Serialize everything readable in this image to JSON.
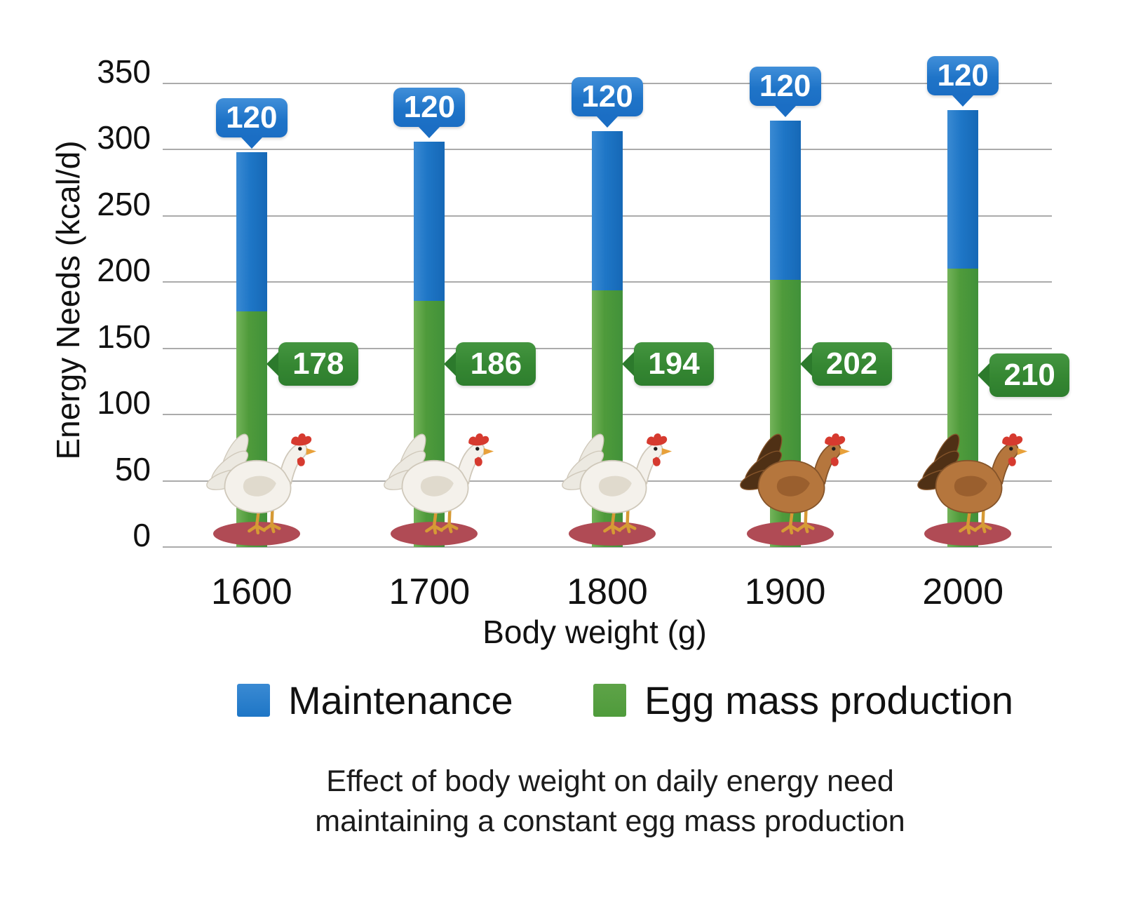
{
  "chart_data": {
    "type": "bar",
    "stacked": true,
    "categories": [
      "1600",
      "1700",
      "1800",
      "1900",
      "2000"
    ],
    "series": [
      {
        "name": "Maintenance",
        "color": "#1e76c6",
        "values": [
          120,
          120,
          120,
          120,
          120
        ]
      },
      {
        "name": "Egg mass production",
        "color": "#4f9b3b",
        "values": [
          178,
          186,
          194,
          202,
          210
        ]
      }
    ],
    "totals": [
      298,
      306,
      314,
      322,
      330
    ],
    "xlabel": "Body weight (g)",
    "ylabel": "Energy Needs (kcal/d)",
    "ylim": [
      0,
      350
    ],
    "y_ticks": [
      0,
      50,
      100,
      150,
      200,
      250,
      300,
      350
    ],
    "grid": "horizontal",
    "legend_position": "bottom",
    "value_label_series0": [
      "120",
      "120",
      "120",
      "120",
      "120"
    ],
    "value_label_series1": [
      "178",
      "186",
      "194",
      "202",
      "210"
    ]
  },
  "caption": {
    "line1": "Effect of body weight on daily energy need",
    "line2": "maintaining a constant egg mass production"
  },
  "decor": {
    "chickens": [
      "white",
      "white",
      "white",
      "brown",
      "brown"
    ],
    "ground_color": "#b04b55"
  },
  "colors": {
    "maintenance_bar": "#1e76c6",
    "egg_bar": "#4f9b3b",
    "maintenance_callout": "#1f74c8",
    "egg_callout": "#358732",
    "gridline": "#ababab",
    "background": "#ffffff",
    "text": "#1c1c1c"
  }
}
